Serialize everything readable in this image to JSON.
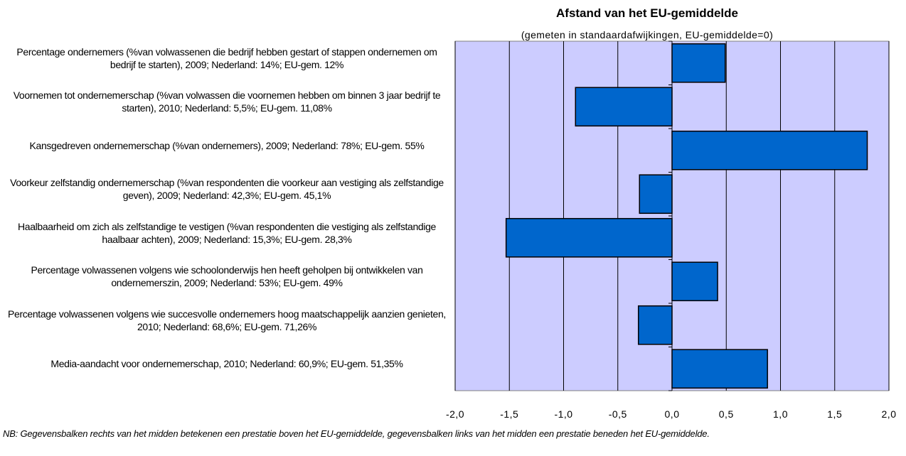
{
  "chart_data": {
    "type": "barh",
    "title": "Afstand van het EU-gemiddelde",
    "subtitle": "(gemeten in standaardafwijkingen, EU-gemiddelde=0)",
    "categories": [
      "Percentage ondernemers (%van volwassenen die bedrijf hebben gestart of stappen ondernemen om bedrijf te starten), 2009; Nederland: 14%; EU-gem. 12%",
      "Voornemen tot ondernemerschap (%van volwassen die voornemen hebben om binnen 3 jaar bedrijf te starten), 2010; Nederland: 5,5%; EU-gem. 11,08%",
      "Kansgedreven ondernemerschap (%van ondernemers), 2009; Nederland: 78%; EU-gem. 55%",
      "Voorkeur zelfstandig ondernemerschap (%van respondenten die voorkeur aan vestiging als zelfstandige geven), 2009; Nederland: 42,3%; EU-gem. 45,1%",
      "Haalbaarheid om zich als zelfstandige te vestigen (%van respondenten die vestiging als zelfstandige haalbaar achten), 2009; Nederland: 15,3%; EU-gem. 28,3%",
      "Percentage volwassenen volgens wie schoolonderwijs hen heeft geholpen bij ontwikkelen van ondernemerszin, 2009; Nederland: 53%; EU-gem. 49%",
      "Percentage volwassenen volgens wie succesvolle ondernemers hoog maatschappelijk aanzien genieten, 2010; Nederland: 68,6%; EU-gem. 71,26%",
      "Media-aandacht voor ondernemerschap, 2010; Nederland: 60,9%; EU-gem. 51,35%"
    ],
    "values": [
      0.49,
      -0.89,
      1.8,
      -0.3,
      -1.53,
      0.42,
      -0.31,
      0.88
    ],
    "color": "#0066cc",
    "plot_background": "#ccccff",
    "xlim": [
      -2,
      2
    ],
    "xticks": [
      {
        "value": -2,
        "label": "-2,0"
      },
      {
        "value": -1.5,
        "label": "-1,5"
      },
      {
        "value": -1,
        "label": "-1,0"
      },
      {
        "value": -0.5,
        "label": "-0,5"
      },
      {
        "value": 0,
        "label": "0,0"
      },
      {
        "value": 0.5,
        "label": "0,5"
      },
      {
        "value": 1,
        "label": "1,0"
      },
      {
        "value": 1.5,
        "label": "1,5"
      },
      {
        "value": 2,
        "label": "2,0"
      }
    ],
    "grid": true,
    "note": "NB: Gegevensbalken rechts van het midden betekenen een prestatie boven het EU-gemiddelde, gegevensbalken links van het midden een prestatie beneden het EU-gemiddelde."
  }
}
